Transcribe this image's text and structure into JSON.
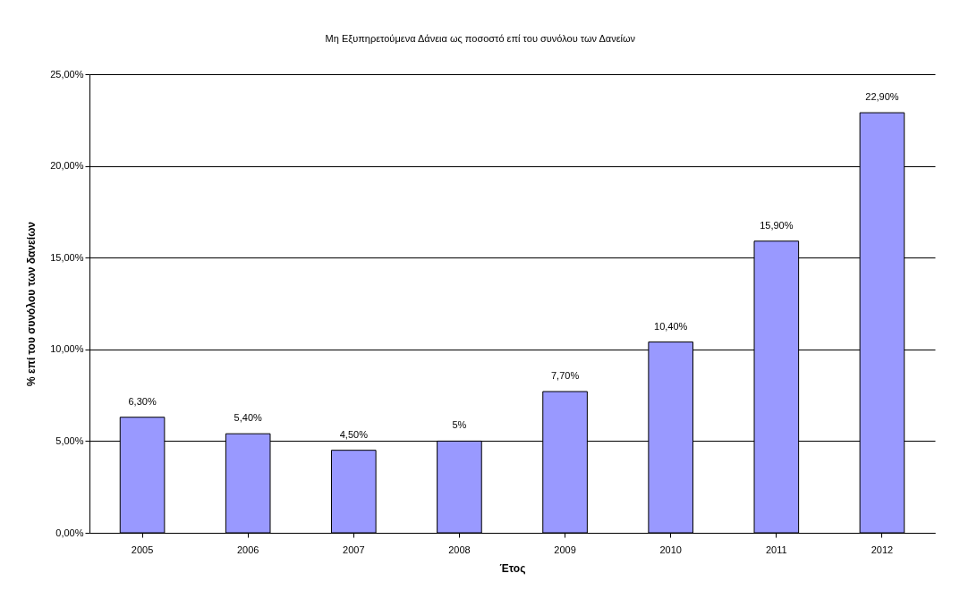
{
  "chart_data": {
    "type": "bar",
    "title": "Μη Εξυπηρετούμενα Δάνεια ως ποσοστό επί του συνόλου των Δανείων",
    "xlabel": "Έτος",
    "ylabel": "% επί του συνόλου των δανείων",
    "categories": [
      "2005",
      "2006",
      "2007",
      "2008",
      "2009",
      "2010",
      "2011",
      "2012"
    ],
    "values": [
      6.3,
      5.4,
      4.5,
      5,
      7.7,
      10.4,
      15.9,
      22.9
    ],
    "value_labels": [
      "6,30%",
      "5,40%",
      "4,50%",
      "5%",
      "7,70%",
      "10,40%",
      "15,90%",
      "22,90%"
    ],
    "color": "#9999ff",
    "ylim": [
      0,
      25
    ],
    "yticks": [
      {
        "value": 0,
        "label": "0,00%"
      },
      {
        "value": 5,
        "label": "5,00%"
      },
      {
        "value": 10,
        "label": "10,00%"
      },
      {
        "value": 15,
        "label": "15,00%"
      },
      {
        "value": 20,
        "label": "20,00%"
      },
      {
        "value": 25,
        "label": "25,00%"
      }
    ],
    "grid": "y"
  }
}
